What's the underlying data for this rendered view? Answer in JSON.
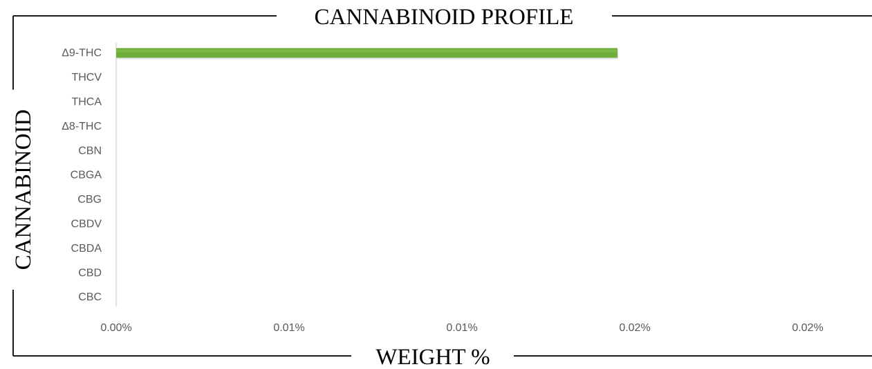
{
  "chart_data": {
    "type": "bar",
    "orientation": "horizontal",
    "title": "CANNABINOID PROFILE",
    "xlabel": "WEIGHT %",
    "ylabel": "CANNABINOID",
    "categories": [
      "Δ9-THC",
      "THCV",
      "THCA",
      "Δ8-THC",
      "CBN",
      "CBGA",
      "CBG",
      "CBDV",
      "CBDA",
      "CBD",
      "CBC"
    ],
    "values": [
      0.0145,
      0,
      0,
      0,
      0,
      0,
      0,
      0,
      0,
      0,
      0
    ],
    "xlim": [
      0,
      0.02
    ],
    "x_ticks": [
      0,
      0.005,
      0.01,
      0.015,
      0.02
    ],
    "x_tick_labels": [
      "0.00%",
      "0.01%",
      "0.01%",
      "0.02%",
      "0.02%"
    ],
    "grid": false,
    "legend": "none",
    "colors": {
      "bar": "#6fae3c",
      "bar_shade": "#7cb846",
      "axis": "#d9d9d9",
      "frame": "#1a1a1a"
    }
  }
}
